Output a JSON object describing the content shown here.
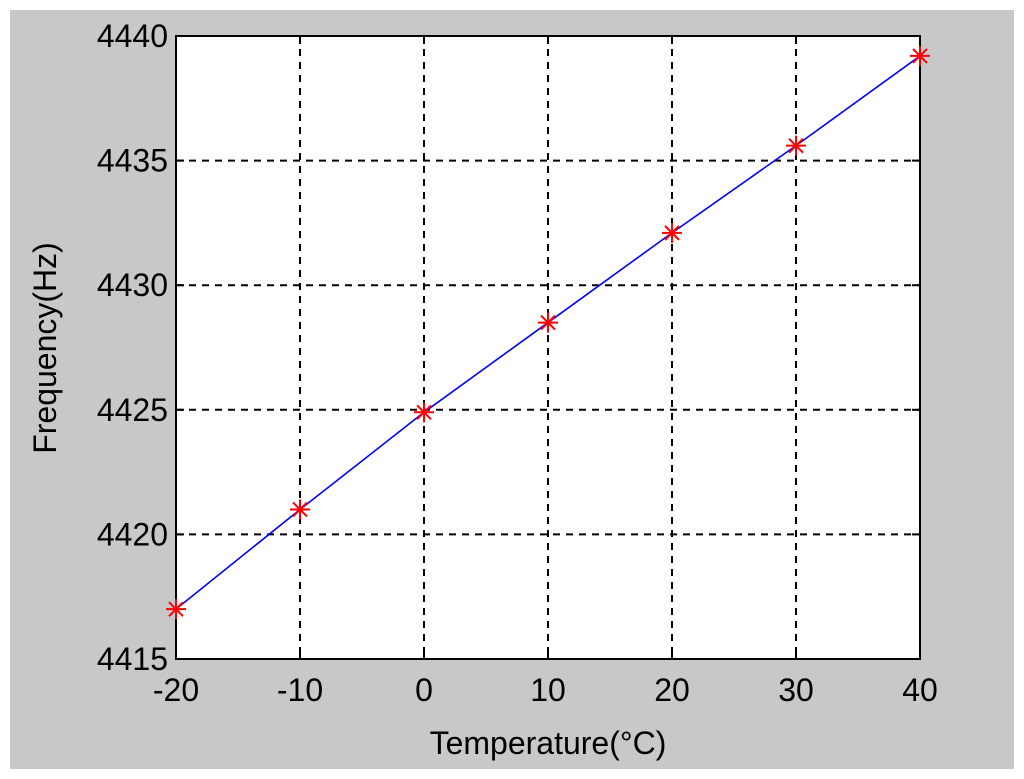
{
  "chart_data": {
    "type": "line",
    "title": "",
    "xlabel": "Temperature(°C)",
    "ylabel": "Frequency(Hz)",
    "xlim": [
      -20,
      40
    ],
    "ylim": [
      4415,
      4440
    ],
    "xticks": [
      -20,
      -10,
      0,
      10,
      20,
      30,
      40
    ],
    "yticks": [
      4415,
      4420,
      4425,
      4430,
      4435,
      4440
    ],
    "xtick_labels": [
      "-20",
      "-10",
      "0",
      "10",
      "20",
      "30",
      "40"
    ],
    "ytick_labels": [
      "4415",
      "4420",
      "4425",
      "4430",
      "4435",
      "4440"
    ],
    "grid": true,
    "grid_style": "dashed",
    "series": [
      {
        "x": [
          -20,
          -10,
          0,
          10,
          20,
          30,
          40
        ],
        "y": [
          4417.0,
          4421.0,
          4424.9,
          4428.5,
          4432.1,
          4435.6,
          4439.2
        ],
        "line_color": "#0000ff",
        "marker": "asterisk",
        "marker_color": "#ff0000"
      }
    ]
  },
  "colors": {
    "figure_background": "#c8c8c8",
    "plot_background": "#ffffff",
    "axis": "#000000",
    "grid": "#000000"
  }
}
